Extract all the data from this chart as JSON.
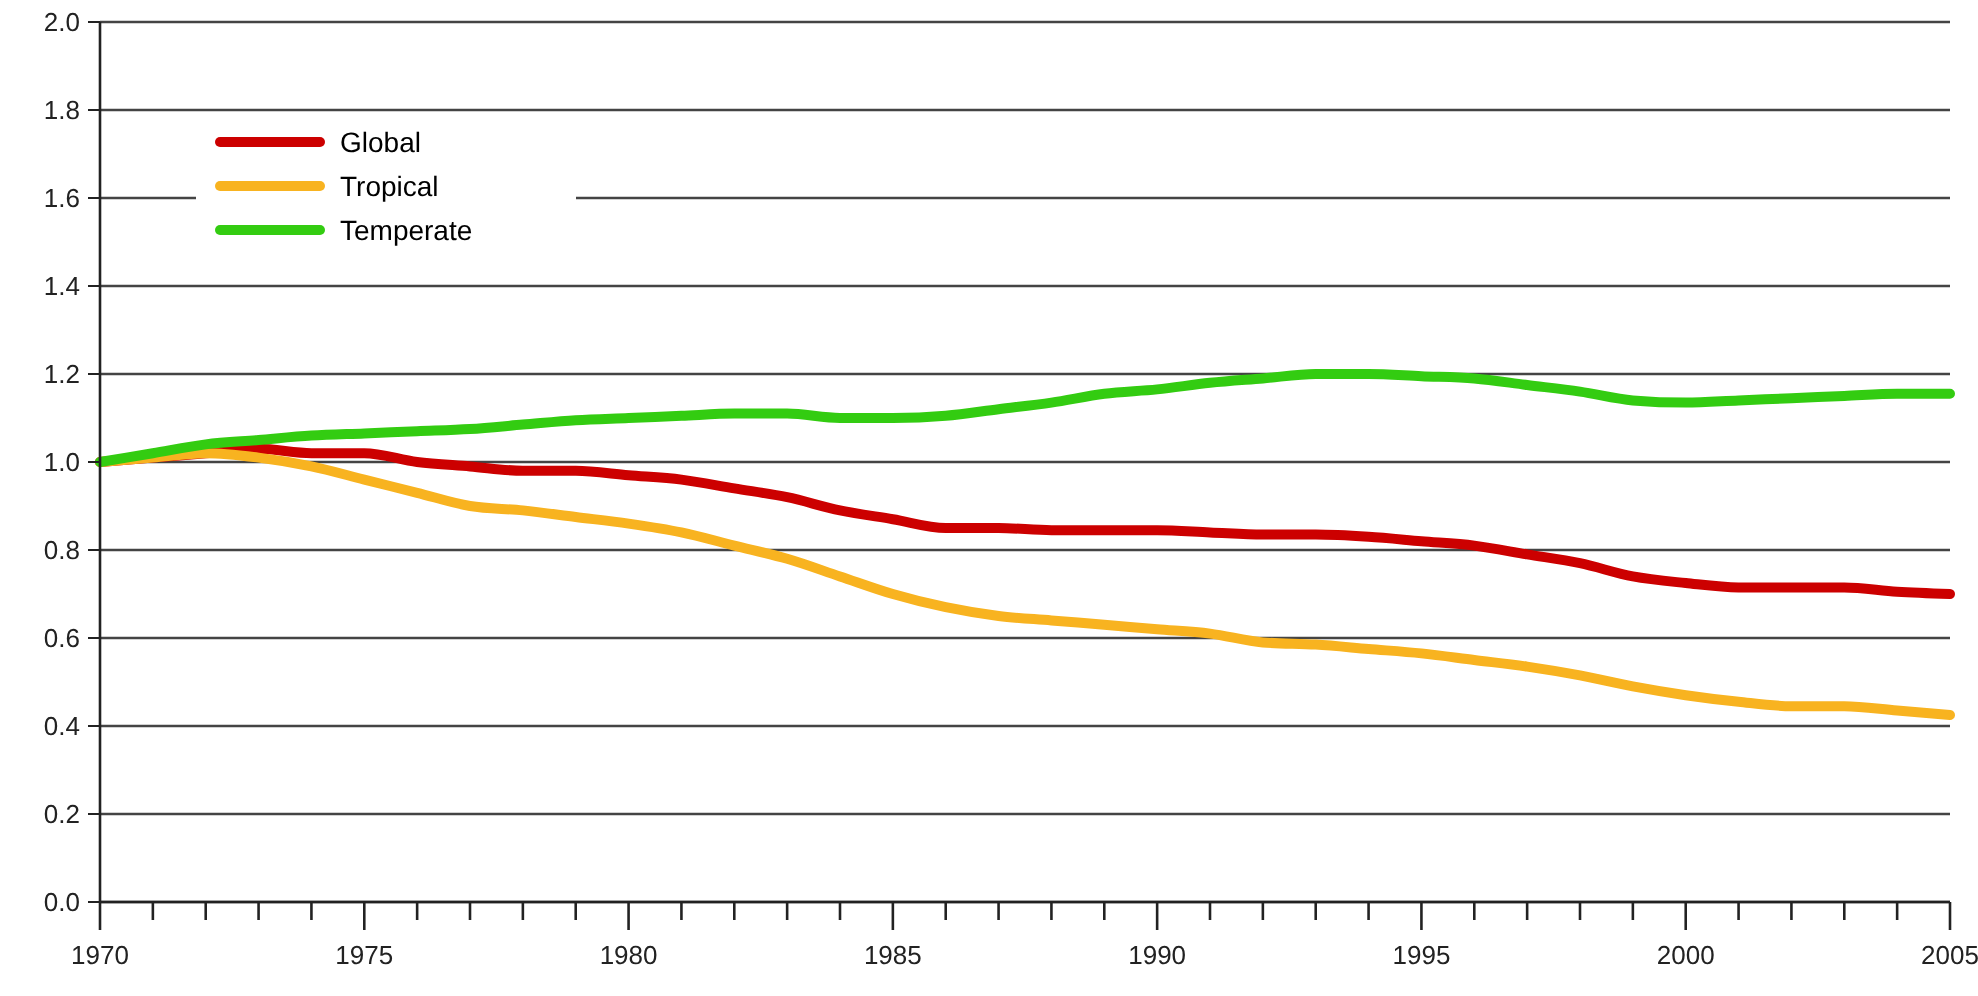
{
  "chart_data": {
    "type": "line",
    "x": [
      1970,
      1971,
      1972,
      1973,
      1974,
      1975,
      1976,
      1977,
      1978,
      1979,
      1980,
      1981,
      1982,
      1983,
      1984,
      1985,
      1986,
      1987,
      1988,
      1989,
      1990,
      1991,
      1992,
      1993,
      1994,
      1995,
      1996,
      1997,
      1998,
      1999,
      2000,
      2001,
      2002,
      2003,
      2004,
      2005
    ],
    "series": [
      {
        "name": "Global",
        "color": "#cc0000",
        "values": [
          1.0,
          1.01,
          1.02,
          1.03,
          1.02,
          1.02,
          1.0,
          0.99,
          0.98,
          0.98,
          0.97,
          0.96,
          0.94,
          0.92,
          0.89,
          0.87,
          0.85,
          0.85,
          0.845,
          0.845,
          0.845,
          0.84,
          0.835,
          0.835,
          0.83,
          0.82,
          0.81,
          0.79,
          0.77,
          0.74,
          0.725,
          0.715,
          0.715,
          0.715,
          0.705,
          0.7
        ]
      },
      {
        "name": "Tropical",
        "color": "#f8b320",
        "values": [
          1.0,
          1.01,
          1.02,
          1.01,
          0.99,
          0.96,
          0.93,
          0.9,
          0.89,
          0.875,
          0.86,
          0.84,
          0.81,
          0.78,
          0.74,
          0.7,
          0.67,
          0.65,
          0.64,
          0.63,
          0.62,
          0.61,
          0.59,
          0.585,
          0.575,
          0.565,
          0.55,
          0.535,
          0.515,
          0.49,
          0.47,
          0.455,
          0.445,
          0.445,
          0.435,
          0.425
        ]
      },
      {
        "name": "Temperate",
        "color": "#33cc11",
        "values": [
          1.0,
          1.02,
          1.04,
          1.05,
          1.06,
          1.065,
          1.07,
          1.075,
          1.085,
          1.095,
          1.1,
          1.105,
          1.11,
          1.11,
          1.1,
          1.1,
          1.105,
          1.12,
          1.135,
          1.155,
          1.165,
          1.18,
          1.19,
          1.2,
          1.2,
          1.195,
          1.19,
          1.175,
          1.16,
          1.14,
          1.135,
          1.14,
          1.145,
          1.15,
          1.155,
          1.155
        ]
      }
    ],
    "xlim": [
      1970,
      2005
    ],
    "xticks": [
      1970,
      {
        "value": 1971,
        "label": null
      },
      {
        "value": 1972,
        "label": null
      },
      {
        "value": 1973,
        "label": null
      },
      {
        "value": 1974,
        "label": null
      },
      1975,
      {
        "value": 1976,
        "label": null
      },
      {
        "value": 1977,
        "label": null
      },
      {
        "value": 1978,
        "label": null
      },
      {
        "value": 1979,
        "label": null
      },
      1980,
      {
        "value": 1981,
        "label": null
      },
      {
        "value": 1982,
        "label": null
      },
      {
        "value": 1983,
        "label": null
      },
      {
        "value": 1984,
        "label": null
      },
      1985,
      {
        "value": 1986,
        "label": null
      },
      {
        "value": 1987,
        "label": null
      },
      {
        "value": 1988,
        "label": null
      },
      {
        "value": 1989,
        "label": null
      },
      1990,
      {
        "value": 1991,
        "label": null
      },
      {
        "value": 1992,
        "label": null
      },
      {
        "value": 1993,
        "label": null
      },
      {
        "value": 1994,
        "label": null
      },
      1995,
      {
        "value": 1996,
        "label": null
      },
      {
        "value": 1997,
        "label": null
      },
      {
        "value": 1998,
        "label": null
      },
      {
        "value": 1999,
        "label": null
      },
      2000,
      {
        "value": 2001,
        "label": null
      },
      {
        "value": 2002,
        "label": null
      },
      {
        "value": 2003,
        "label": null
      },
      {
        "value": 2004,
        "label": null
      },
      2005
    ],
    "ylim": [
      0,
      2
    ],
    "yticks": [
      {
        "value": 0,
        "label": "0.0"
      },
      {
        "value": 0.2,
        "label": "0.2"
      },
      {
        "value": 0.4,
        "label": "0.4"
      },
      {
        "value": 0.6,
        "label": "0.6"
      },
      {
        "value": 0.8,
        "label": "0.8"
      },
      {
        "value": 1,
        "label": "1.0"
      },
      {
        "value": 1.2,
        "label": "1.2"
      },
      {
        "value": 1.4,
        "label": "1.4"
      },
      {
        "value": 1.6,
        "label": "1.6"
      },
      {
        "value": 1.8,
        "label": "1.8"
      },
      {
        "value": 2,
        "label": "2.0"
      }
    ],
    "grid": "y",
    "legend": "top left",
    "marker": "none",
    "line_style": "solid"
  }
}
